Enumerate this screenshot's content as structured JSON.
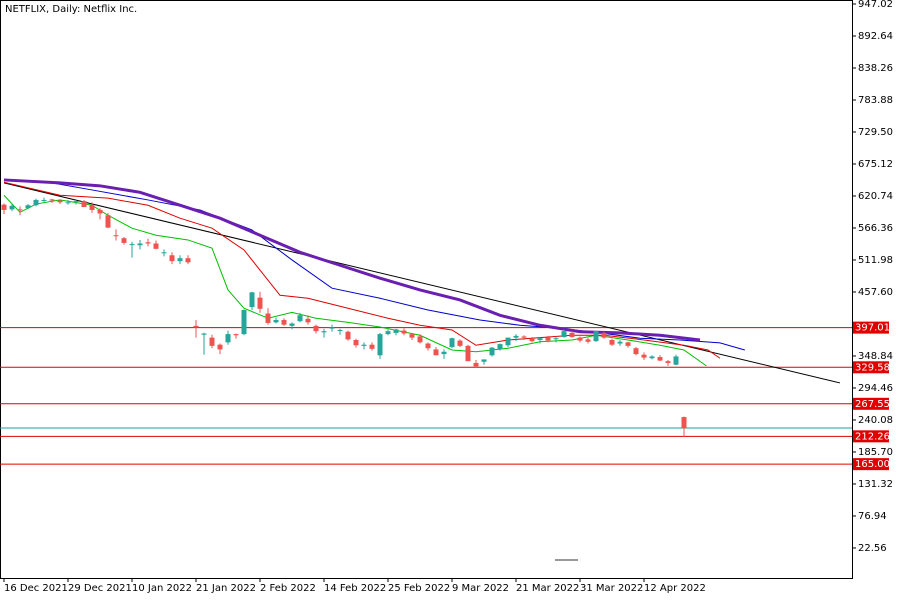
{
  "chart_data": {
    "type": "candlestick",
    "title": "NETFLIX, Daily:  Netflix Inc.",
    "categories": [
      "16 Dec 2021",
      null,
      null,
      null,
      null,
      null,
      null,
      null,
      "29 Dec 2021",
      null,
      null,
      null,
      null,
      null,
      null,
      null,
      "10 Jan 2022",
      null,
      null,
      null,
      null,
      null,
      null,
      null,
      "21 Jan 2022",
      null,
      null,
      null,
      null,
      null,
      null,
      null,
      "2 Feb 2022",
      null,
      null,
      null,
      null,
      null,
      null,
      null,
      "14 Feb 2022",
      null,
      null,
      null,
      null,
      null,
      null,
      null,
      "25 Feb 2022",
      null,
      null,
      null,
      null,
      null,
      null,
      null,
      "9 Mar 2022",
      null,
      null,
      null,
      null,
      null,
      null,
      null,
      "21 Mar 2022",
      null,
      null,
      null,
      null,
      null,
      null,
      null,
      "31 Mar 2022",
      null,
      null,
      null,
      null,
      null,
      null,
      null,
      "12 Apr 2022",
      null,
      null,
      null,
      null,
      null
    ],
    "open": [
      606,
      598,
      598,
      600,
      605,
      614,
      615,
      613,
      610,
      612,
      612,
      605,
      597,
      588,
      554,
      549,
      538,
      537,
      542,
      540,
      525,
      520,
      510,
      515,
      400,
      385,
      380,
      368,
      372,
      386,
      386,
      432,
      448,
      421,
      406,
      410,
      400,
      408,
      412,
      400,
      389,
      396,
      393,
      390,
      376,
      366,
      368,
      350,
      386,
      388,
      392,
      386,
      382,
      370,
      360,
      352,
      364,
      375,
      366,
      337,
      339,
      350,
      360,
      367,
      380,
      382,
      378,
      376,
      380,
      378,
      381,
      388,
      380,
      377,
      374,
      388,
      376,
      370,
      372,
      362,
      351,
      345,
      347,
      340,
      334,
      245
    ],
    "high": [
      608,
      607,
      603,
      607,
      616,
      618,
      616,
      614,
      614,
      614,
      614,
      610,
      600,
      592,
      564,
      551,
      543,
      546,
      548,
      545,
      530,
      525,
      520,
      520,
      410,
      388,
      385,
      370,
      392,
      387,
      428,
      458,
      458,
      430,
      414,
      413,
      406,
      422,
      418,
      402,
      395,
      402,
      395,
      392,
      378,
      372,
      372,
      388,
      394,
      395,
      396,
      388,
      386,
      372,
      364,
      360,
      380,
      377,
      368,
      342,
      343,
      364,
      370,
      380,
      386,
      384,
      381,
      380,
      383,
      382,
      394,
      392,
      382,
      380,
      392,
      390,
      378,
      376,
      373,
      364,
      355,
      350,
      350,
      342,
      351,
      246
    ],
    "low": [
      590,
      595,
      588,
      598,
      603,
      610,
      609,
      607,
      606,
      606,
      602,
      592,
      581,
      566,
      545,
      538,
      516,
      530,
      535,
      530,
      518,
      505,
      505,
      505,
      380,
      351,
      362,
      352,
      368,
      378,
      384,
      427,
      422,
      402,
      404,
      400,
      394,
      406,
      402,
      387,
      380,
      390,
      385,
      375,
      363,
      360,
      358,
      344,
      384,
      384,
      384,
      376,
      370,
      358,
      350,
      344,
      362,
      364,
      340,
      329,
      334,
      348,
      358,
      364,
      374,
      376,
      372,
      370,
      372,
      372,
      380,
      380,
      372,
      370,
      373,
      378,
      366,
      366,
      363,
      350,
      342,
      343,
      340,
      332,
      333,
      212
    ],
    "close": [
      597,
      604,
      597,
      605,
      614,
      614,
      613,
      610,
      610,
      612,
      602,
      597,
      591,
      567,
      553,
      541,
      539,
      540,
      540,
      531,
      525,
      510,
      515,
      508,
      397,
      387,
      366,
      360,
      386,
      384,
      427,
      457,
      429,
      405,
      410,
      402,
      404,
      418,
      406,
      391,
      391,
      397,
      393,
      377,
      367,
      368,
      361,
      386,
      391,
      394,
      387,
      380,
      372,
      362,
      350,
      356,
      379,
      366,
      340,
      331,
      343,
      363,
      369,
      380,
      383,
      380,
      374,
      379,
      375,
      379,
      391,
      381,
      375,
      373,
      391,
      380,
      368,
      373,
      366,
      352,
      346,
      348,
      341,
      337,
      348,
      226
    ],
    "up_color": "#26a69a",
    "down_color": "#ef5350",
    "indicators": [
      {
        "color": "#00c000",
        "width": 1,
        "x": [
          0,
          2,
          4,
          7,
          11,
          13,
          16,
          19,
          23,
          26,
          28,
          30,
          33,
          36,
          39,
          43,
          47,
          52,
          56,
          59,
          63,
          67,
          71,
          74,
          78,
          82,
          85,
          87.8
        ],
        "values": [
          622,
          593,
          607,
          614,
          605,
          588,
          566,
          554,
          546,
          532,
          461,
          430,
          413,
          423,
          413,
          406,
          398,
          384,
          359,
          356,
          362,
          373,
          376,
          384,
          376,
          367,
          359,
          332
        ]
      },
      {
        "color": "#e00000",
        "width": 1,
        "x": [
          0,
          7,
          13,
          18,
          22,
          26,
          30,
          34.5,
          38,
          43,
          48,
          52,
          56,
          59,
          63,
          67,
          71,
          75,
          80,
          85,
          88,
          89.5
        ],
        "values": [
          644,
          622,
          617,
          605,
          583,
          566,
          529,
          452,
          447,
          430,
          413,
          401,
          393,
          367,
          376,
          380,
          384,
          384,
          376,
          367,
          359,
          345
        ]
      },
      {
        "color": "#0000d0",
        "width": 1,
        "x": [
          0,
          6,
          11,
          18,
          24.5,
          31,
          36,
          41,
          47,
          53,
          59.5,
          64.5,
          69.5,
          74.5,
          79.5,
          84.5,
          89.5,
          92.6
        ],
        "values": [
          648,
          643,
          631,
          614,
          597,
          563,
          512,
          464,
          447,
          427,
          410,
          401,
          396,
          388,
          379,
          376,
          371,
          359
        ]
      },
      {
        "color": "#6a1fb0",
        "width": 3,
        "x": [
          0,
          7,
          12,
          17,
          22,
          27,
          32,
          37,
          42,
          47,
          52,
          57,
          62,
          67,
          72,
          77,
          82,
          87
        ],
        "values": [
          648,
          643,
          638,
          627,
          605,
          583,
          554,
          525,
          503,
          481,
          461,
          444,
          418,
          401,
          390,
          388,
          384,
          376
        ]
      }
    ],
    "trend_line": {
      "color": "#000000",
      "x": [
        0,
        104.5
      ],
      "values": [
        643,
        303
      ]
    },
    "levels": [
      397.01,
      329.58,
      267.55,
      212.26,
      {
        "value": 165.0,
        "label": "165.00"
      }
    ],
    "level_color": "#e00000",
    "price_line": {
      "value": 226.4,
      "color": "#1aa3a3"
    },
    "xlim": [
      -0.5,
      106
    ],
    "ylim": [
      -28.5,
      953.8
    ],
    "yticks": [
      947.02,
      892.64,
      838.26,
      783.88,
      {
        "value": 729.5,
        "label": "729.50"
      },
      675.12,
      620.74,
      566.36,
      511.98,
      {
        "value": 457.6,
        "label": "457.60"
      },
      348.84,
      294.46,
      240.08,
      {
        "value": 185.7,
        "label": "185.70"
      },
      131.32,
      76.94,
      22.56
    ]
  }
}
